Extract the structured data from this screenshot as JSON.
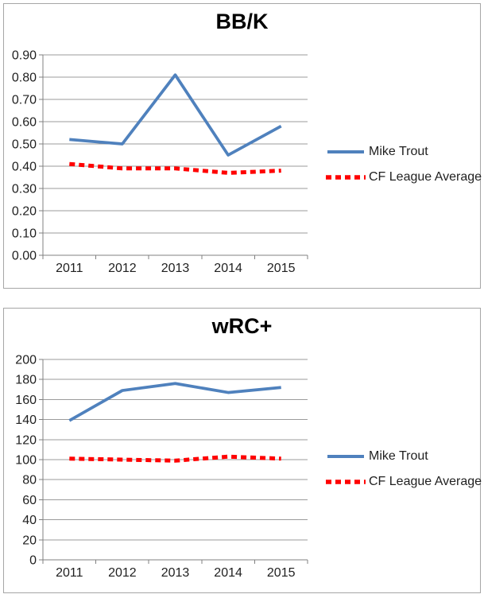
{
  "chart_data": [
    {
      "type": "line",
      "title": "BB/K",
      "categories": [
        "2011",
        "2012",
        "2013",
        "2014",
        "2015"
      ],
      "series": [
        {
          "name": "Mike Trout",
          "color": "#4F81BD",
          "dash": "solid",
          "values": [
            0.52,
            0.5,
            0.81,
            0.45,
            0.58
          ]
        },
        {
          "name": "CF League Average",
          "color": "#FF0000",
          "dash": "square-dot",
          "values": [
            0.41,
            0.39,
            0.39,
            0.37,
            0.38
          ]
        }
      ],
      "xlabel": "",
      "ylabel": "",
      "ylim": [
        0.0,
        0.9
      ],
      "ytick_step": 0.1,
      "ytick_decimals": 2,
      "ytick_labels": [
        "0.00",
        "0.10",
        "0.20",
        "0.30",
        "0.40",
        "0.50",
        "0.60",
        "0.70",
        "0.80",
        "0.90"
      ],
      "grid": true,
      "legend_position": "right"
    },
    {
      "type": "line",
      "title": "wRC+",
      "categories": [
        "2011",
        "2012",
        "2013",
        "2014",
        "2015"
      ],
      "series": [
        {
          "name": "Mike Trout",
          "color": "#4F81BD",
          "dash": "solid",
          "values": [
            139,
            169,
            176,
            167,
            172
          ]
        },
        {
          "name": "CF League Average",
          "color": "#FF0000",
          "dash": "square-dot",
          "values": [
            101,
            100,
            99,
            103,
            101
          ]
        }
      ],
      "xlabel": "",
      "ylabel": "",
      "ylim": [
        0,
        200
      ],
      "ytick_step": 20,
      "ytick_decimals": 0,
      "ytick_labels": [
        "0",
        "20",
        "40",
        "60",
        "80",
        "100",
        "120",
        "140",
        "160",
        "180",
        "200"
      ],
      "grid": true,
      "legend_position": "right"
    }
  ],
  "styles": {
    "trout_blue": "#4F81BD",
    "league_red": "#FF0000",
    "gridline_color": "#9B9B9B",
    "axis_color": "#808080",
    "chart_border_color": "#A6A6A6",
    "text_color": "#1F1F1F",
    "background": "#FFFFFF"
  }
}
